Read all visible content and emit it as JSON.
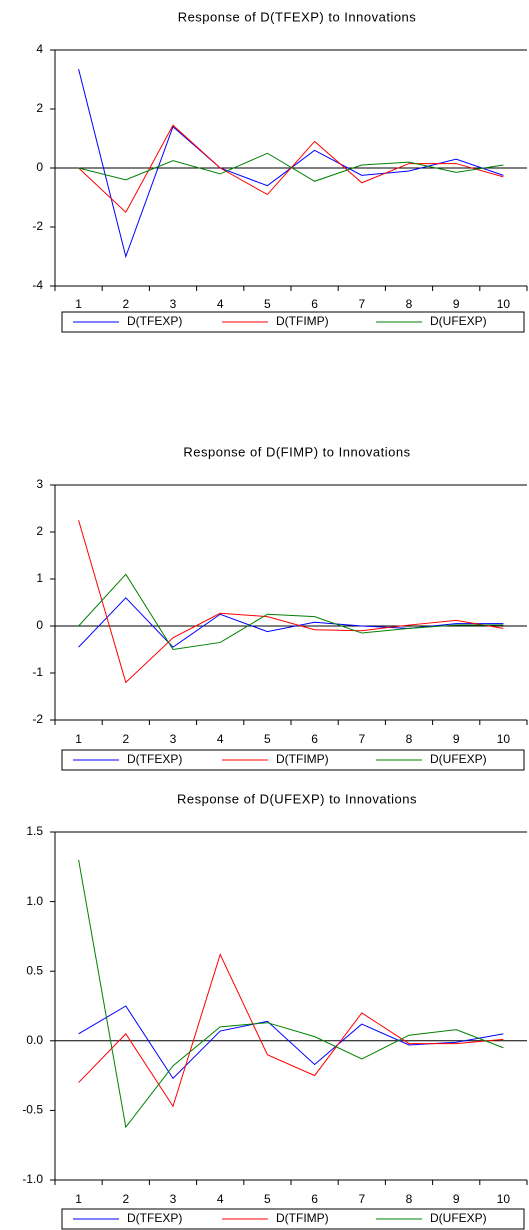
{
  "chart_data": [
    {
      "type": "line",
      "title": "Response of D(TFEXP) to Innovations",
      "categories": [
        "1",
        "2",
        "3",
        "4",
        "5",
        "6",
        "7",
        "8",
        "9",
        "10"
      ],
      "ylim": [
        -4,
        4
      ],
      "yticks": [
        -4,
        -2,
        0,
        2,
        4
      ],
      "grid": false,
      "legend": "bottom",
      "series": [
        {
          "name": "D(TFEXP)",
          "color": "#0000ff",
          "values": [
            3.35,
            -3.0,
            1.4,
            0.0,
            -0.6,
            0.6,
            -0.25,
            -0.1,
            0.3,
            -0.25
          ]
        },
        {
          "name": "D(TFIMP)",
          "color": "#ff0000",
          "values": [
            0,
            -1.5,
            1.45,
            0.0,
            -0.9,
            0.9,
            -0.5,
            0.15,
            0.15,
            -0.3
          ]
        },
        {
          "name": "D(UFEXP)",
          "color": "#008000",
          "values": [
            0,
            -0.4,
            0.25,
            -0.2,
            0.5,
            -0.45,
            0.1,
            0.2,
            -0.15,
            0.1
          ]
        }
      ]
    },
    {
      "type": "line",
      "title": "Response of D(FIMP) to Innovations",
      "categories": [
        "1",
        "2",
        "3",
        "4",
        "5",
        "6",
        "7",
        "8",
        "9",
        "10"
      ],
      "ylim": [
        -2,
        3
      ],
      "yticks": [
        -2,
        -1,
        0,
        1,
        2,
        3
      ],
      "grid": false,
      "legend": "bottom",
      "series": [
        {
          "name": "D(TFEXP)",
          "color": "#0000ff",
          "values": [
            -0.45,
            0.6,
            -0.45,
            0.25,
            -0.12,
            0.08,
            0.0,
            -0.05,
            0.05,
            0.05
          ]
        },
        {
          "name": "D(TFIMP)",
          "color": "#ff0000",
          "values": [
            2.25,
            -1.2,
            -0.25,
            0.27,
            0.2,
            -0.08,
            -0.1,
            0.02,
            0.12,
            -0.05
          ]
        },
        {
          "name": "D(UFEXP)",
          "color": "#008000",
          "values": [
            0,
            1.1,
            -0.5,
            -0.35,
            0.25,
            0.2,
            -0.15,
            -0.05,
            0.02,
            0.02
          ]
        }
      ]
    },
    {
      "type": "line",
      "title": "Response of D(UFEXP) to Innovations",
      "categories": [
        "1",
        "2",
        "3",
        "4",
        "5",
        "6",
        "7",
        "8",
        "9",
        "10"
      ],
      "ylim": [
        -1,
        1.5
      ],
      "yticks": [
        {
          "value": -1,
          "label": "-1.0"
        },
        -0.5,
        {
          "value": 0,
          "label": "0.0"
        },
        0.5,
        {
          "value": 1,
          "label": "1.0"
        },
        1.5
      ],
      "grid": false,
      "legend": "bottom",
      "series": [
        {
          "name": "D(TFEXP)",
          "color": "#0000ff",
          "values": [
            0.05,
            0.25,
            -0.27,
            0.07,
            0.14,
            -0.17,
            0.12,
            -0.03,
            -0.01,
            0.05
          ]
        },
        {
          "name": "D(TFIMP)",
          "color": "#ff0000",
          "values": [
            -0.3,
            0.05,
            -0.47,
            0.62,
            -0.1,
            -0.25,
            0.2,
            -0.02,
            -0.02,
            0.01
          ]
        },
        {
          "name": "D(UFEXP)",
          "color": "#008000",
          "values": [
            1.3,
            -0.62,
            -0.18,
            0.1,
            0.13,
            0.03,
            -0.13,
            0.04,
            0.08,
            -0.05
          ]
        }
      ]
    }
  ]
}
